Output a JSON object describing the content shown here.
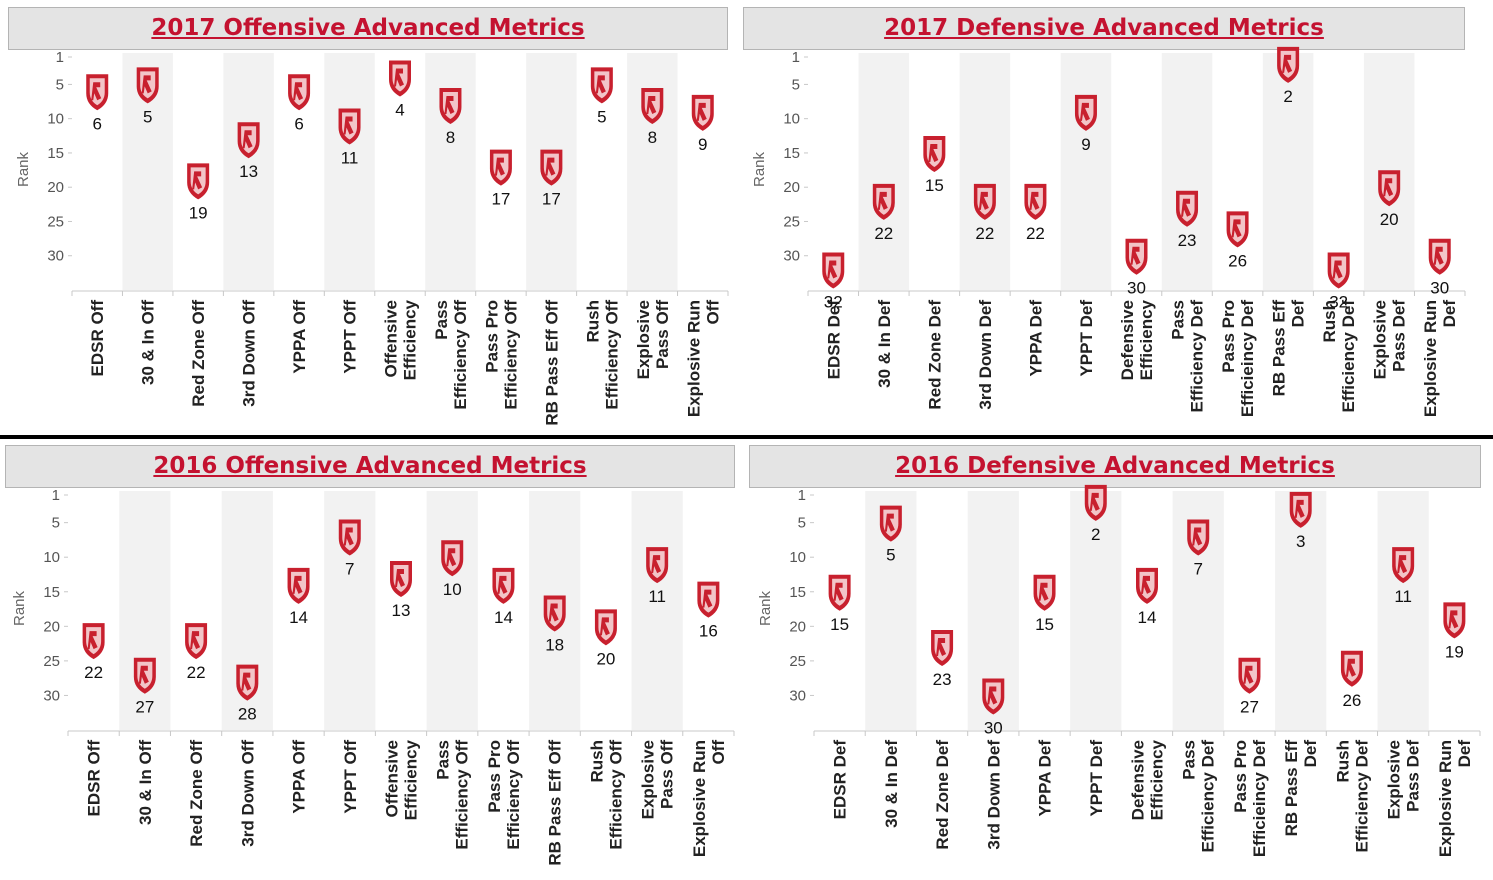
{
  "y_axis_label": "Rank",
  "colors": {
    "title": "#c41230",
    "marker": "#c8202e",
    "marker_fill": "#f2c5c8",
    "band": "#f2f2f2"
  },
  "marker_icon": "team-shield-logo-icon",
  "chart_data": [
    {
      "id": "off2017",
      "type": "scatter",
      "title": "2017 Offensive Advanced Metrics",
      "ylabel": "Rank",
      "y_ticks": [
        1,
        5,
        10,
        15,
        20,
        25,
        30
      ],
      "ylim": [
        1,
        35
      ],
      "y_reversed": true,
      "categories": [
        [
          "EDSR Off"
        ],
        [
          "30 & In Off"
        ],
        [
          "Red Zone Off"
        ],
        [
          "3rd Down Off"
        ],
        [
          "YPPA Off"
        ],
        [
          "YPPT Off"
        ],
        [
          "Offensive",
          "Efficiency"
        ],
        [
          "Pass",
          "Efficiency Off"
        ],
        [
          "Pass Pro",
          "Efficiency Off"
        ],
        [
          "RB Pass Eff Off"
        ],
        [
          "Rush",
          "Efficiency Off"
        ],
        [
          "Explosive",
          "Pass Off"
        ],
        [
          "Explosive Run",
          "Off"
        ]
      ],
      "values": [
        6,
        5,
        19,
        13,
        6,
        11,
        4,
        8,
        17,
        17,
        5,
        8,
        9
      ]
    },
    {
      "id": "def2017",
      "type": "scatter",
      "title": "2017 Defensive Advanced Metrics",
      "ylabel": "Rank",
      "y_ticks": [
        1,
        5,
        10,
        15,
        20,
        25,
        30
      ],
      "ylim": [
        1,
        35
      ],
      "y_reversed": true,
      "categories": [
        [
          "EDSR Def"
        ],
        [
          "30 & In Def"
        ],
        [
          "Red Zone Def"
        ],
        [
          "3rd Down Def"
        ],
        [
          "YPPA Def"
        ],
        [
          "YPPT Def"
        ],
        [
          "Defensive",
          "Efficiency"
        ],
        [
          "Pass",
          "Efficiency Def"
        ],
        [
          "Pass Pro",
          "Efficieincy Def"
        ],
        [
          "RB Pass Eff",
          "Def"
        ],
        [
          "Rush",
          "Efficiency Def"
        ],
        [
          "Explosive",
          "Pass Def"
        ],
        [
          "Explosive Run",
          "Def"
        ]
      ],
      "values": [
        32,
        22,
        15,
        22,
        22,
        9,
        30,
        23,
        26,
        2,
        32,
        20,
        30
      ]
    },
    {
      "id": "off2016",
      "type": "scatter",
      "title": "2016 Offensive Advanced Metrics",
      "ylabel": "Rank",
      "y_ticks": [
        1,
        5,
        10,
        15,
        20,
        25,
        30
      ],
      "ylim": [
        1,
        35
      ],
      "y_reversed": true,
      "categories": [
        [
          "EDSR Off"
        ],
        [
          "30 & In Off"
        ],
        [
          "Red Zone Off"
        ],
        [
          "3rd Down Off"
        ],
        [
          "YPPA Off"
        ],
        [
          "YPPT Off"
        ],
        [
          "Offensive",
          "Efficiency"
        ],
        [
          "Pass",
          "Efficiency Off"
        ],
        [
          "Pass Pro",
          "Efficiency Off"
        ],
        [
          "RB Pass Eff Off"
        ],
        [
          "Rush",
          "Efficiency Off"
        ],
        [
          "Explosive",
          "Pass Off"
        ],
        [
          "Explosive Run",
          "Off"
        ]
      ],
      "values": [
        22,
        27,
        22,
        28,
        14,
        7,
        13,
        10,
        14,
        18,
        20,
        11,
        16
      ]
    },
    {
      "id": "def2016",
      "type": "scatter",
      "title": "2016 Defensive Advanced Metrics",
      "ylabel": "Rank",
      "y_ticks": [
        1,
        5,
        10,
        15,
        20,
        25,
        30
      ],
      "ylim": [
        1,
        35
      ],
      "y_reversed": true,
      "categories": [
        [
          "EDSR Def"
        ],
        [
          "30 & In Def"
        ],
        [
          "Red Zone Def"
        ],
        [
          "3rd Down Def"
        ],
        [
          "YPPA Def"
        ],
        [
          "YPPT Def"
        ],
        [
          "Defensive",
          "Efficiency"
        ],
        [
          "Pass",
          "Efficiency Def"
        ],
        [
          "Pass Pro",
          "Efficieincy Def"
        ],
        [
          "RB Pass Eff",
          "Def"
        ],
        [
          "Rush",
          "Efficiency Def"
        ],
        [
          "Explosive",
          "Pass Def"
        ],
        [
          "Explosive Run",
          "Def"
        ]
      ],
      "values": [
        15,
        5,
        23,
        30,
        15,
        2,
        14,
        7,
        27,
        3,
        26,
        11,
        19
      ]
    }
  ]
}
